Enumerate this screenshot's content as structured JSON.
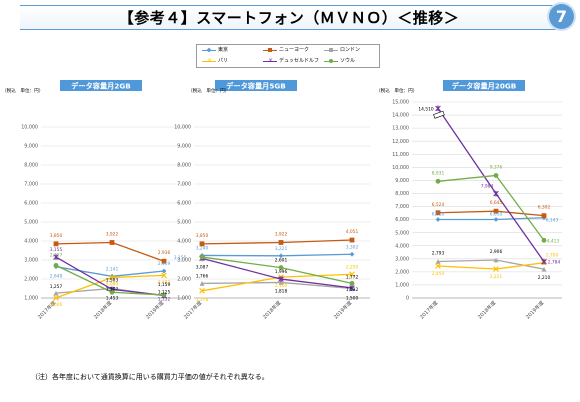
{
  "header": {
    "title": "【参考４】スマートフォン（ＭＶＮＯ）＜推移＞",
    "page_number": "7"
  },
  "note": "（注）各年度において通貨換算に用いる購買力平価の値がそれぞれ異なる。",
  "colors": {
    "tokyo": "#5b9bd5",
    "newyork": "#c55a11",
    "london": "#a5a5a5",
    "paris": "#ffc000",
    "dusseldorf": "#7030a0",
    "seoul": "#70ad47",
    "panel_header": "#4f98d9"
  },
  "legend": [
    {
      "name": "東京",
      "key": "tokyo",
      "marker": "diamond"
    },
    {
      "name": "ニューヨーク",
      "key": "newyork",
      "marker": "square"
    },
    {
      "name": "ロンドン",
      "key": "london",
      "marker": "triangle"
    },
    {
      "name": "パリ",
      "key": "paris",
      "marker": "x"
    },
    {
      "name": "デュッセルドルフ",
      "key": "dusseldorf",
      "marker": "star"
    },
    {
      "name": "ソウル",
      "key": "seoul",
      "marker": "circle"
    }
  ],
  "chart_data": [
    {
      "type": "line",
      "title": "データ容量月2GB",
      "unit_label": "（税込　単位：円）",
      "categories": [
        "2017年度",
        "2018年度",
        "2019年度"
      ],
      "ylim": [
        1000,
        10000
      ],
      "yticks": [
        "1,000",
        "2,000",
        "3,000",
        "4,000",
        "5,000",
        "6,000",
        "7,000",
        "8,000",
        "9,000",
        "10,000"
      ],
      "series": [
        {
          "name": "東京",
          "key": "tokyo",
          "values": [
            2648,
            2141,
            2419
          ]
        },
        {
          "name": "ニューヨーク",
          "key": "newyork",
          "values": [
            3850,
            3922,
            2936
          ]
        },
        {
          "name": "ロンドン",
          "key": "london",
          "values": [
            1257,
            1503,
            1125
          ]
        },
        {
          "name": "パリ",
          "key": "paris",
          "values": [
            1006,
            2080,
            2192
          ]
        },
        {
          "name": "デュッセルドルフ",
          "key": "dusseldorf",
          "values": [
            3155,
            1453,
            1132
          ]
        },
        {
          "name": "ソウル",
          "key": "seoul",
          "values": [
            2717,
            1302,
            1159
          ]
        }
      ],
      "data_labels": [
        {
          "text": "3,850",
          "x": 0,
          "y": 3850,
          "color": "#c55a11",
          "dy": -7
        },
        {
          "text": "3,922",
          "x": 1,
          "y": 3922,
          "color": "#c55a11",
          "dy": -7
        },
        {
          "text": "2,936",
          "x": 2,
          "y": 2936,
          "color": "#c55a11",
          "dy": -7
        },
        {
          "text": "3,155",
          "x": 0,
          "y": 3155,
          "color": "#7030a0",
          "dy": -6
        },
        {
          "text": "2,717",
          "x": 0,
          "y": 2717,
          "color": "#70ad47",
          "dy": -9
        },
        {
          "text": "2,648",
          "x": 0,
          "y": 2648,
          "color": "#5b9bd5",
          "dy": 11
        },
        {
          "text": "2,141",
          "x": 1,
          "y": 2141,
          "color": "#5b9bd5",
          "dy": -6
        },
        {
          "text": "2,419",
          "x": 2,
          "y": 2419,
          "color": "#5b9bd5",
          "dy": -6
        },
        {
          "text": "2,080",
          "x": 1,
          "y": 2080,
          "color": "#ffc000",
          "dy": 8
        },
        {
          "text": "2,192",
          "x": 2,
          "y": 2192,
          "color": "#ffc000",
          "dy": 8
        },
        {
          "text": "1,257",
          "x": 0,
          "y": 1257,
          "color": "#000000",
          "dy": -5
        },
        {
          "text": "1,006",
          "x": 0,
          "y": 1006,
          "color": "#ffc000",
          "dy": 8
        },
        {
          "text": "1,503",
          "x": 1,
          "y": 1503,
          "color": "#000000",
          "dy": -7
        },
        {
          "text": "1,302",
          "x": 1,
          "y": 1302,
          "color": "#000000",
          "dy": -2
        },
        {
          "text": "1,453",
          "x": 1,
          "y": 1453,
          "color": "#000000",
          "dy": 10
        },
        {
          "text": "1,159",
          "x": 2,
          "y": 1159,
          "color": "#000000",
          "dy": -9
        },
        {
          "text": "1,125",
          "x": 2,
          "y": 1125,
          "color": "#000000",
          "dy": -2
        },
        {
          "text": "1,132",
          "x": 2,
          "y": 1132,
          "color": "#7030a0",
          "dy": 5
        }
      ]
    },
    {
      "type": "line",
      "title": "データ容量月5GB",
      "unit_label": "（税込　単位：円）",
      "categories": [
        "2017年度",
        "2018年度",
        "2019年度"
      ],
      "ylim": [
        1000,
        10000
      ],
      "yticks": [
        "1,000",
        "2,000",
        "3,000",
        "4,000",
        "5,000",
        "6,000",
        "7,000",
        "8,000",
        "9,000",
        "10,000"
      ],
      "series": [
        {
          "name": "東京",
          "key": "tokyo",
          "values": [
            3240,
            3221,
            3302
          ]
        },
        {
          "name": "ニューヨーク",
          "key": "newyork",
          "values": [
            3850,
            3922,
            4051
          ]
        },
        {
          "name": "ロンドン",
          "key": "london",
          "values": [
            1766,
            1818,
            1500
          ]
        },
        {
          "name": "パリ",
          "key": "paris",
          "values": [
            1378,
            2100,
            2250
          ]
        },
        {
          "name": "デュッセルドルフ",
          "key": "dusseldorf",
          "values": [
            3087,
            1996,
            1532
          ]
        },
        {
          "name": "ソウル",
          "key": "seoul",
          "values": [
            3155,
            2601,
            1772
          ]
        }
      ],
      "data_labels": [
        {
          "text": "3,850",
          "x": 0,
          "y": 3850,
          "color": "#c55a11",
          "dy": -7
        },
        {
          "text": "3,922",
          "x": 1,
          "y": 3922,
          "color": "#c55a11",
          "dy": -7
        },
        {
          "text": "4,051",
          "x": 2,
          "y": 4051,
          "color": "#c55a11",
          "dy": -7
        },
        {
          "text": "3,240",
          "x": 0,
          "y": 3240,
          "color": "#5b9bd5",
          "dy": -6
        },
        {
          "text": "3,221",
          "x": 1,
          "y": 3221,
          "color": "#5b9bd5",
          "dy": -6
        },
        {
          "text": "3,302",
          "x": 2,
          "y": 3302,
          "color": "#5b9bd5",
          "dy": -6
        },
        {
          "text": "3,155",
          "x": 0,
          "y": 3155,
          "color": "#5b9bd5",
          "dx": -22,
          "dy": 2
        },
        {
          "text": "3,087",
          "x": 0,
          "y": 3087,
          "color": "#000000",
          "dy": 10
        },
        {
          "text": "2,601",
          "x": 1,
          "y": 2601,
          "color": "#000000",
          "dy": -6
        },
        {
          "text": "2,250",
          "x": 2,
          "y": 2250,
          "color": "#ffc000",
          "dy": -6
        },
        {
          "text": "2,100",
          "x": 1,
          "y": 2100,
          "color": "#ffc000",
          "dy": 10
        },
        {
          "text": "1,766",
          "x": 0,
          "y": 1766,
          "color": "#000000",
          "dy": -6
        },
        {
          "text": "1,378",
          "x": 0,
          "y": 1378,
          "color": "#ffc000",
          "dy": 10
        },
        {
          "text": "1,996",
          "x": 1,
          "y": 1996,
          "color": "#000000",
          "dy": -6
        },
        {
          "text": "1,818",
          "x": 1,
          "y": 1818,
          "color": "#000000",
          "dy": 10
        },
        {
          "text": "1,772",
          "x": 2,
          "y": 1772,
          "color": "#000000",
          "dy": -5
        },
        {
          "text": "1,532",
          "x": 2,
          "y": 1532,
          "color": "#000000",
          "dy": 3
        },
        {
          "text": "1,500",
          "x": 2,
          "y": 1500,
          "color": "#000000",
          "dy": 11
        }
      ]
    },
    {
      "type": "line",
      "title": "データ容量月20GB",
      "unit_label": "（税込　単位：円）",
      "categories": [
        "2017年度",
        "2018年度",
        "2019年度"
      ],
      "ylim": [
        0,
        15000
      ],
      "yticks": [
        "0",
        "1,000",
        "2,000",
        "3,000",
        "4,000",
        "5,000",
        "6,000",
        "7,000",
        "8,000",
        "9,000",
        "10,000",
        "11,000",
        "12,000",
        "13,000",
        "14,000",
        "15,000"
      ],
      "series": [
        {
          "name": "東京",
          "key": "tokyo",
          "values": [
            6010,
            6010,
            6143
          ]
        },
        {
          "name": "ニューヨーク",
          "key": "newyork",
          "values": [
            6524,
            6645,
            6302
          ]
        },
        {
          "name": "ロンドン",
          "key": "london",
          "values": [
            2793,
            2906,
            2210
          ]
        },
        {
          "name": "パリ",
          "key": "paris",
          "values": [
            2450,
            2221,
            2700
          ]
        },
        {
          "name": "デュッセルドルフ",
          "key": "dusseldorf",
          "values": [
            14510,
            7984,
            2784
          ]
        },
        {
          "name": "ソウル",
          "key": "seoul",
          "values": [
            8931,
            9376,
            4413
          ]
        }
      ],
      "data_labels": [
        {
          "text": "14,510",
          "x": 0,
          "y": 14510,
          "color": "#000000",
          "dx": -12,
          "dy": 2
        },
        {
          "text": "8,931",
          "x": 0,
          "y": 8931,
          "color": "#70ad47",
          "dy": -7
        },
        {
          "text": "9,376",
          "x": 1,
          "y": 9376,
          "color": "#70ad47",
          "dy": -7
        },
        {
          "text": "7,984",
          "x": 1,
          "y": 7984,
          "color": "#7030a0",
          "dx": -9,
          "dy": -6
        },
        {
          "text": "6,524",
          "x": 0,
          "y": 6524,
          "color": "#c55a11",
          "dy": -7
        },
        {
          "text": "6,645",
          "x": 1,
          "y": 6645,
          "color": "#c55a11",
          "dy": -7
        },
        {
          "text": "6,302",
          "x": 2,
          "y": 6302,
          "color": "#c55a11",
          "dy": -7
        },
        {
          "text": "6,010",
          "x": 0,
          "y": 6010,
          "color": "#5b9bd5",
          "dy": -4
        },
        {
          "text": "6,010",
          "x": 1,
          "y": 6010,
          "color": "#5b9bd5",
          "dy": -4
        },
        {
          "text": "6,143",
          "x": 2,
          "y": 6143,
          "color": "#5b9bd5",
          "dx": 8,
          "dy": 4
        },
        {
          "text": "4,413",
          "x": 2,
          "y": 4413,
          "color": "#70ad47",
          "dx": 9,
          "dy": 2
        },
        {
          "text": "2,793",
          "x": 0,
          "y": 2793,
          "color": "#000000",
          "dy": -7
        },
        {
          "text": "2,906",
          "x": 1,
          "y": 2906,
          "color": "#000000",
          "dy": -7
        },
        {
          "text": "2,784",
          "x": 2,
          "y": 2784,
          "color": "#7030a0",
          "dx": 10,
          "dy": 2
        },
        {
          "text": "2,450",
          "x": 0,
          "y": 2450,
          "color": "#ffc000",
          "dy": 9
        },
        {
          "text": "2,221",
          "x": 1,
          "y": 2221,
          "color": "#ffc000",
          "dy": 9
        },
        {
          "text": "2,700",
          "x": 2,
          "y": 2700,
          "color": "#ffc000",
          "dx": 8,
          "dy": -6
        },
        {
          "text": "2,210",
          "x": 2,
          "y": 2210,
          "color": "#000000",
          "dy": 10
        }
      ]
    }
  ]
}
